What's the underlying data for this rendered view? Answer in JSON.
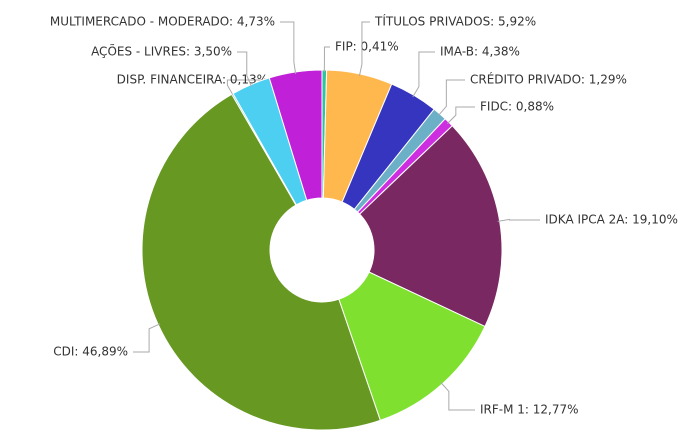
{
  "chart_data": {
    "type": "pie",
    "values": [
      0.41,
      5.92,
      4.38,
      1.29,
      0.88,
      19.1,
      12.77,
      46.89,
      0.13,
      3.5,
      4.73
    ],
    "value_labels": [
      "FIP: 0,41%",
      "TÍTULOS PRIVADOS: 5,92%",
      "IMA-B: 4,38%",
      "CRÉDITO PRIVADO: 1,29%",
      "FIDC: 0,88%",
      "IDKA IPCA 2A: 19,10%",
      "IRF-M 1: 12,77%",
      "CDI: 46,89%",
      "DISP. FINANCEIRA: 0,13%",
      "AÇÕES - LIVRES: 3,50%",
      "MULTIMERCADO - MODERADO: 4,73%"
    ],
    "colors": [
      "#2ec4a0",
      "#ffb84d",
      "#3535c0",
      "#6cb0c8",
      "#cc2ee0",
      "#7a2862",
      "#7fe030",
      "#679922",
      "#40c8b0",
      "#4ccff0",
      "#c020d8"
    ]
  }
}
